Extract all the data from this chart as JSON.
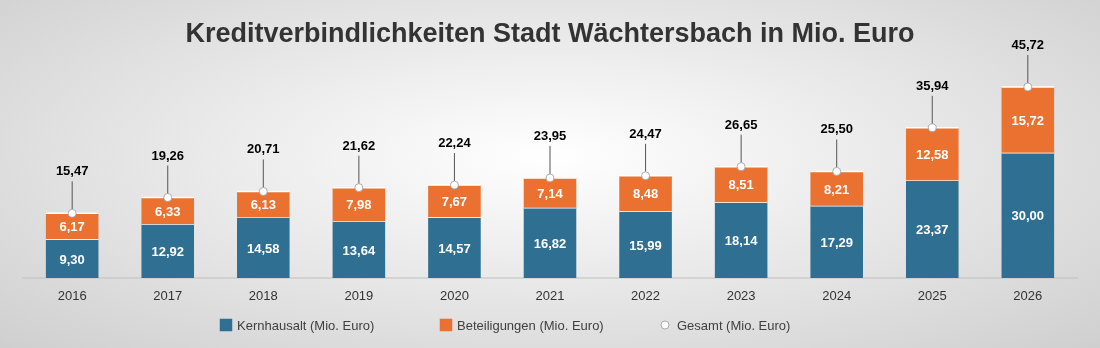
{
  "chart_data": {
    "type": "bar",
    "title": "Kreditverbindlichkeiten Stadt Wächtersbach in Mio. Euro",
    "categories": [
      "2016",
      "2017",
      "2018",
      "2019",
      "2020",
      "2021",
      "2022",
      "2023",
      "2024",
      "2025",
      "2026"
    ],
    "stacked": true,
    "tick_labels": "x",
    "legend": "bottom",
    "series": [
      {
        "name": "Kernhausalt (Mio. Euro)",
        "color": "#2f6f91",
        "values": [
          9.3,
          12.92,
          14.58,
          13.64,
          14.57,
          16.82,
          15.99,
          18.14,
          17.29,
          23.37,
          30.0
        ],
        "value_labels": [
          "9,30",
          "12,92",
          "14,58",
          "13,64",
          "14,57",
          "16,82",
          "15,99",
          "18,14",
          "17,29",
          "23,37",
          "30,00"
        ]
      },
      {
        "name": "Beteiligungen (Mio. Euro)",
        "color": "#ea7130",
        "values": [
          6.17,
          6.33,
          6.13,
          7.98,
          7.67,
          7.14,
          8.48,
          8.51,
          8.21,
          12.58,
          15.72
        ],
        "value_labels": [
          "6,17",
          "6,33",
          "6,13",
          "7,98",
          "7,67",
          "7,14",
          "8,48",
          "8,51",
          "8,21",
          "12,58",
          "15,72"
        ]
      },
      {
        "name": "Gesamt (Mio. Euro)",
        "type": "scatter",
        "marker": "circle",
        "color": "#ffffff",
        "values": [
          15.47,
          19.26,
          20.71,
          21.62,
          22.24,
          23.95,
          24.47,
          26.65,
          25.5,
          35.94,
          45.72
        ],
        "value_labels": [
          "15,47",
          "19,26",
          "20,71",
          "21,62",
          "22,24",
          "23,95",
          "24,47",
          "26,65",
          "25,50",
          "35,94",
          "45,72"
        ]
      }
    ]
  }
}
